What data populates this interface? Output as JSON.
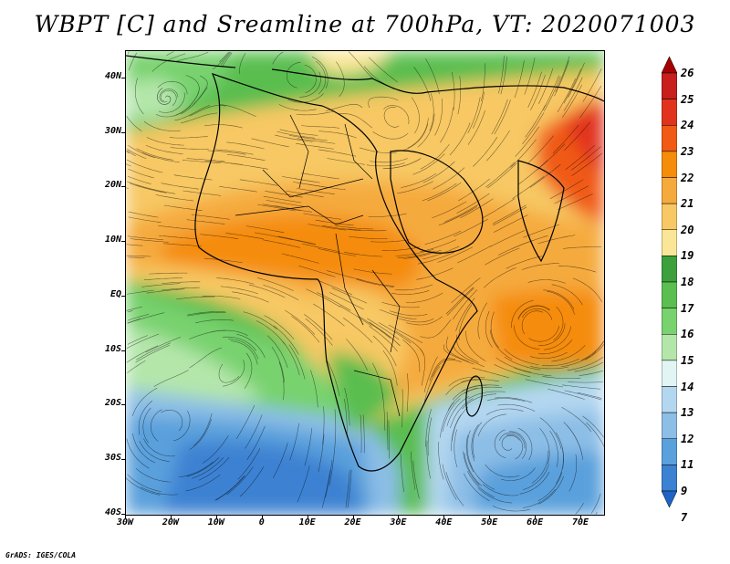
{
  "title": "WBPT [C] and Sreamline at 700hPa, VT: 2020071003",
  "credit": "GrADS: IGES/COLA",
  "map": {
    "lon_range": [
      -30,
      75
    ],
    "lat_range": [
      -40,
      45
    ],
    "lat_ticks": [
      {
        "value": 40,
        "label": "40N"
      },
      {
        "value": 30,
        "label": "30N"
      },
      {
        "value": 20,
        "label": "20N"
      },
      {
        "value": 10,
        "label": "10N"
      },
      {
        "value": 0,
        "label": "EQ"
      },
      {
        "value": -10,
        "label": "10S"
      },
      {
        "value": -20,
        "label": "20S"
      },
      {
        "value": -30,
        "label": "30S"
      },
      {
        "value": -40,
        "label": "40S"
      }
    ],
    "lon_ticks": [
      {
        "value": -30,
        "label": "30W"
      },
      {
        "value": -20,
        "label": "20W"
      },
      {
        "value": -10,
        "label": "10W"
      },
      {
        "value": 0,
        "label": "0"
      },
      {
        "value": 10,
        "label": "10E"
      },
      {
        "value": 20,
        "label": "20E"
      },
      {
        "value": 30,
        "label": "30E"
      },
      {
        "value": 40,
        "label": "40E"
      },
      {
        "value": 50,
        "label": "50E"
      },
      {
        "value": 60,
        "label": "60E"
      },
      {
        "value": 70,
        "label": "70E"
      }
    ]
  },
  "colorbar": {
    "labels": [
      "26",
      "25",
      "24",
      "23",
      "22",
      "21",
      "20",
      "19",
      "18",
      "17",
      "16",
      "15",
      "14",
      "13",
      "12",
      "11",
      "9",
      "7"
    ],
    "colors": [
      "#a50000",
      "#c81e1e",
      "#e1321e",
      "#f05a14",
      "#f58c0a",
      "#f5aa3c",
      "#f7c864",
      "#fae696",
      "#3ca03c",
      "#5abe50",
      "#78d26e",
      "#b4e6aa",
      "#e1f5f5",
      "#b4d7f0",
      "#8cbee6",
      "#5aa0dc",
      "#3c82d2",
      "#1e64c8"
    ]
  }
}
